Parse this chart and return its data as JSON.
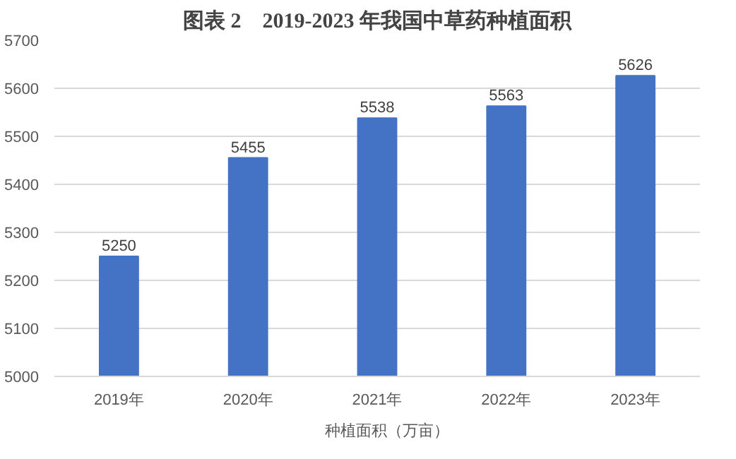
{
  "chart_data": {
    "type": "bar",
    "title": "图表 2　2019-2023 年我国中草药种植面积",
    "categories": [
      "2019年",
      "2020年",
      "2021年",
      "2022年",
      "2023年"
    ],
    "series": [
      {
        "name": "种植面积（万亩）",
        "color": "#4472c4",
        "values": [
          5250,
          5455,
          5538,
          5563,
          5626
        ]
      }
    ],
    "ylim": [
      5000,
      5700
    ],
    "yticks": [
      5000,
      5100,
      5200,
      5300,
      5400,
      5500,
      5600,
      5700
    ],
    "grid": "y",
    "legend": "bottom",
    "data_labels": true
  }
}
